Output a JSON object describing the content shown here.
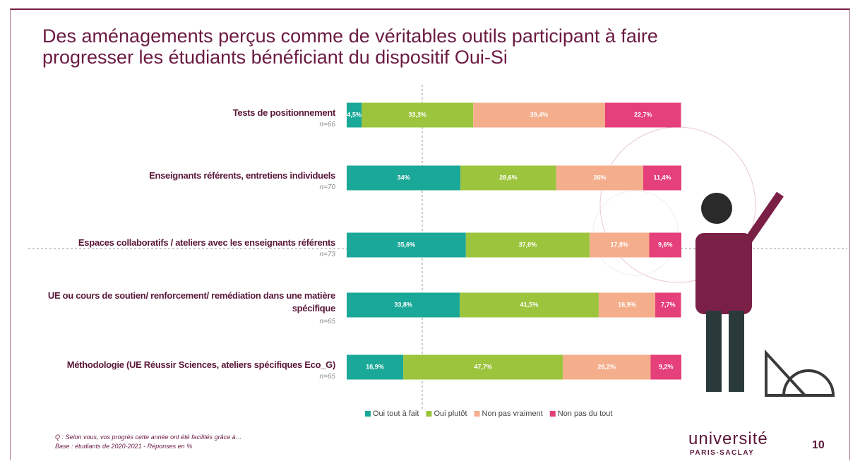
{
  "chart_data": {
    "type": "stacked-bar",
    "title": "Des aménagements perçus comme de véritables outils participant à faire progresser les étudiants bénéficiant du dispositif Oui-Si",
    "categories": [
      "Tests de positionnement",
      "Enseignants référents, entretiens individuels",
      "Espaces collaboratifs / ateliers avec les enseignants référents",
      "UE ou cours de soutien/ renforcement/ remédiation dans une matière spécifique",
      "Méthodologie (UE Réussir Sciences, ateliers spécifiques Eco_G)"
    ],
    "sample_sizes": [
      "n=66",
      "n=70",
      "n=73",
      "n=65",
      "n=65"
    ],
    "xlim": [
      0,
      100
    ],
    "series": [
      {
        "name": "Oui tout à fait",
        "color": "#1aa898",
        "values": [
          4.5,
          34,
          35.6,
          33.8,
          16.9
        ],
        "value_labels": [
          "4,5%",
          "34%",
          "35,6%",
          "33,8%",
          "16,9%"
        ]
      },
      {
        "name": "Oui plutôt",
        "color": "#9cc43c",
        "values": [
          33.3,
          28.6,
          37.0,
          41.5,
          47.7
        ],
        "value_labels": [
          "33,3%",
          "28,6%",
          "37,0%",
          "41,5%",
          "47,7%"
        ]
      },
      {
        "name": "Non pas vraiment",
        "color": "#f5ae8c",
        "values": [
          39.4,
          26,
          17.8,
          16.9,
          26.2
        ],
        "value_labels": [
          "39,4%",
          "26%",
          "17,8%",
          "16,9%",
          "26,2%"
        ]
      },
      {
        "name": "Non pas du tout",
        "color": "#e5407a",
        "values": [
          22.7,
          11.4,
          9.6,
          7.7,
          9.2
        ],
        "value_labels": [
          "22,7%",
          "11,4%",
          "9,6%",
          "7,7%",
          "9,2%"
        ]
      }
    ],
    "legend": "bottom"
  },
  "footer": {
    "notes": [
      "Q : Selon vous, vos progrès cette année ont été facilités grâce à…",
      "Base : étudiants de 2020-2021 - Réponses en %"
    ],
    "logo": [
      "université",
      "PARIS-SACLAY"
    ],
    "page": 10
  }
}
